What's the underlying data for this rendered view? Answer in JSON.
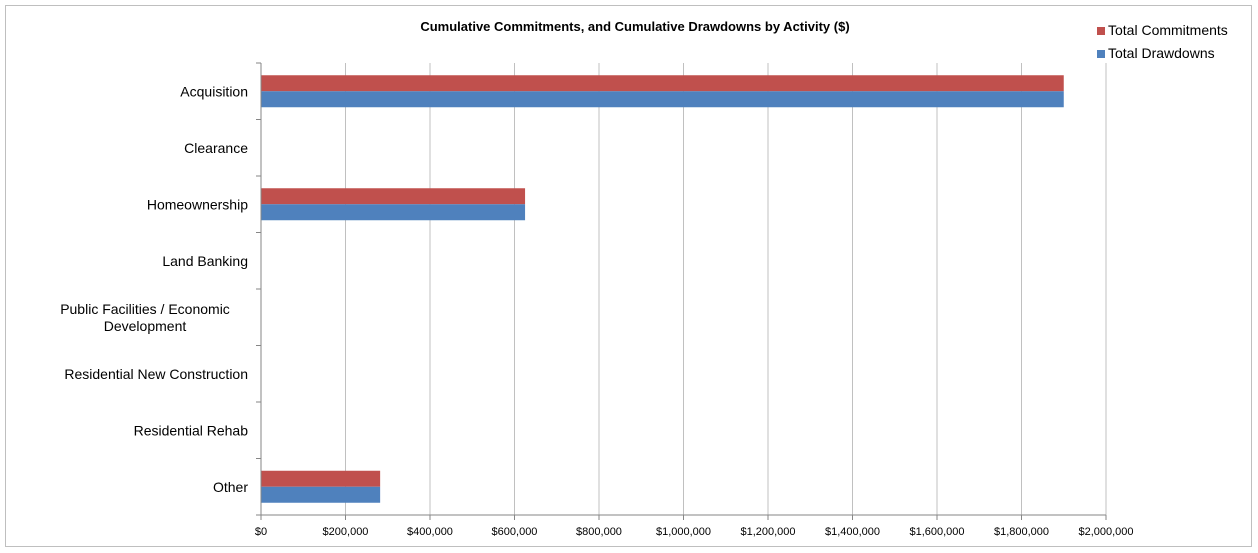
{
  "chart_data": {
    "type": "bar",
    "orientation": "horizontal",
    "title": "Cumulative Commitments, and Cumulative Drawdowns by Activity ($)",
    "xlabel": "",
    "ylabel": "",
    "xlim": [
      0,
      2000000
    ],
    "x_ticks": [
      "$0",
      "$200,000",
      "$400,000",
      "$600,000",
      "$800,000",
      "$1,000,000",
      "$1,200,000",
      "$1,400,000",
      "$1,600,000",
      "$1,800,000",
      "$2,000,000"
    ],
    "x_tick_values": [
      0,
      200000,
      400000,
      600000,
      800000,
      1000000,
      1200000,
      1400000,
      1600000,
      1800000,
      2000000
    ],
    "categories": [
      [
        "Acquisition"
      ],
      [
        "Clearance"
      ],
      [
        "Homeownership"
      ],
      [
        "Land Banking"
      ],
      [
        "Public Facilities / Economic",
        "Development"
      ],
      [
        "Residential New Construction"
      ],
      [
        "Residential Rehab"
      ],
      [
        "Other"
      ]
    ],
    "series": [
      {
        "name": "Total Commitments",
        "color": "#c0504d",
        "values": [
          1900000,
          0,
          625000,
          0,
          0,
          0,
          0,
          282000
        ]
      },
      {
        "name": "Total Drawdowns",
        "color": "#4f81bd",
        "values": [
          1900000,
          0,
          625000,
          0,
          0,
          0,
          0,
          282000
        ]
      }
    ],
    "grid": true,
    "legend_position": "top-right"
  }
}
